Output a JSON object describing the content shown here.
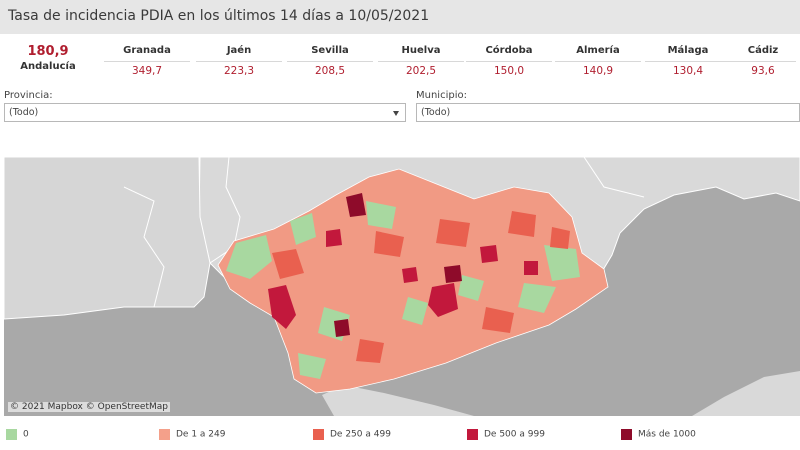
{
  "title": "Tasa de incidencia PDIA en los últimos 14 días a 10/05/2021",
  "total": {
    "value": "180,9",
    "name": "Andalucía"
  },
  "provinces": [
    {
      "name": "Granada",
      "value": "349,7"
    },
    {
      "name": "Jaén",
      "value": "223,3"
    },
    {
      "name": "Sevilla",
      "value": "208,5"
    },
    {
      "name": "Huelva",
      "value": "202,5"
    },
    {
      "name": "Córdoba",
      "value": "150,0"
    },
    {
      "name": "Almería",
      "value": "140,9"
    },
    {
      "name": "Málaga",
      "value": "130,4"
    },
    {
      "name": "Cádiz",
      "value": "93,6"
    }
  ],
  "filters": {
    "province": {
      "label": "Provincia:",
      "value": "(Todo)"
    },
    "municipality": {
      "label": "Municipio:",
      "value": "(Todo)"
    }
  },
  "map": {
    "attribution": "© 2021 Mapbox © OpenStreetMap"
  },
  "legend": [
    {
      "label": "0",
      "color": "#a8d8a0"
    },
    {
      "label": "De 1 a 249",
      "color": "#f4a08a"
    },
    {
      "label": "De 250 a 499",
      "color": "#e9604f"
    },
    {
      "label": "De 500 a 999",
      "color": "#c2183c"
    },
    {
      "label": "Más de 1000",
      "color": "#8e0b2a"
    }
  ]
}
